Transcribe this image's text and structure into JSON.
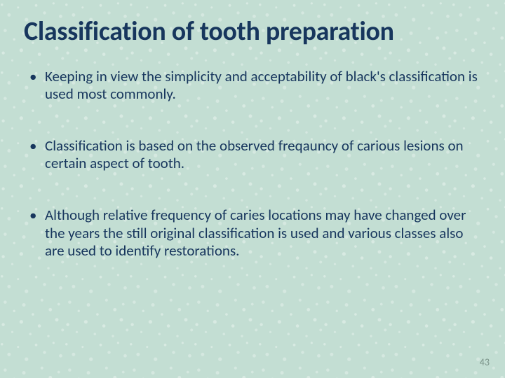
{
  "slide": {
    "title": "Classification of tooth preparation",
    "bullets": [
      "Keeping in view the simplicity and acceptability of black's classification is used most commonly.",
      "Classification is based on the observed freqauncy of carious lesions on certain aspect of tooth.",
      "Although relative frequency of caries locations may have changed over the years the still original classification is used and various classes also are used to identify restorations."
    ],
    "page_number": "43",
    "background_color": "#c3ded3",
    "title_color": "#17365d",
    "text_color": "#17365d",
    "page_number_color": "#7b948a",
    "title_fontsize": 38,
    "body_fontsize": 21,
    "page_number_fontsize": 14
  }
}
